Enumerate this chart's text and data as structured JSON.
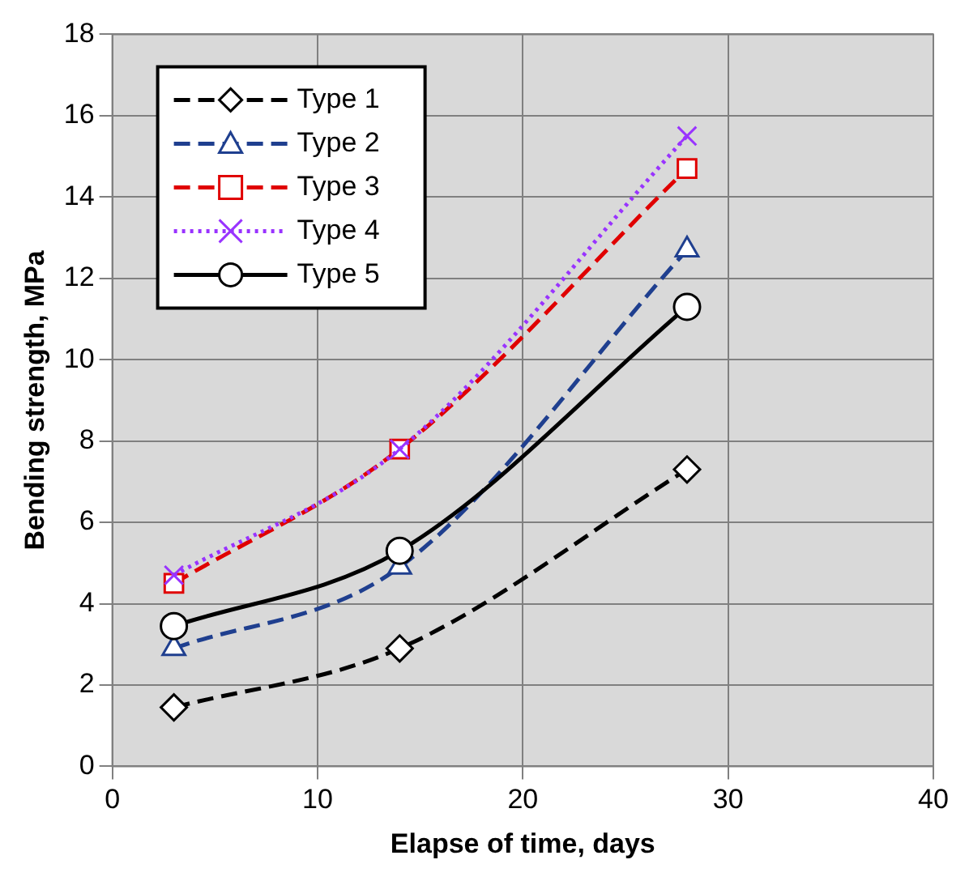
{
  "chart_data": {
    "type": "line",
    "xlabel": "Elapse of time, days",
    "ylabel": "Bending strength, MPa",
    "xlim": [
      0,
      40
    ],
    "xticks": [
      0,
      10,
      20,
      30,
      40
    ],
    "ylim": [
      0,
      18
    ],
    "yticks": [
      0,
      2,
      4,
      6,
      8,
      10,
      12,
      14,
      16,
      18
    ],
    "grid": true,
    "legend": "top left",
    "series": [
      {
        "name": "Type 1",
        "color": "#000000",
        "x": [
          3,
          14,
          28
        ],
        "values": [
          1.45,
          2.9,
          7.3
        ],
        "marker": "diamond",
        "line_style": "dashed"
      },
      {
        "name": "Type 2",
        "color": "#1f3f8f",
        "x": [
          3,
          14,
          28
        ],
        "values": [
          2.9,
          4.9,
          12.7
        ],
        "marker": "triangle",
        "line_style": "dashed"
      },
      {
        "name": "Type 3",
        "color": "#e00000",
        "x": [
          3,
          14,
          28
        ],
        "values": [
          4.5,
          7.8,
          14.7
        ],
        "marker": "square",
        "line_style": "dashed"
      },
      {
        "name": "Type 4",
        "color": "#9933ff",
        "x": [
          3,
          14,
          28
        ],
        "values": [
          4.7,
          7.8,
          15.5
        ],
        "marker": "cross",
        "line_style": "dotted"
      },
      {
        "name": "Type 5",
        "color": "#000000",
        "x": [
          3,
          14,
          28
        ],
        "values": [
          3.45,
          5.3,
          11.3
        ],
        "marker": "circle",
        "line_style": "solid"
      }
    ]
  }
}
